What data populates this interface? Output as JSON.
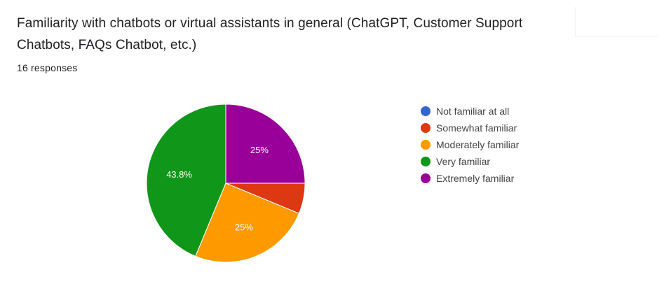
{
  "question": {
    "title": "Familiarity with chatbots or virtual assistants in general (ChatGPT, Customer Support Chatbots, FAQs Chatbot, etc.)",
    "responses_text": "16 responses"
  },
  "chart_data": {
    "type": "pie",
    "total_responses": 16,
    "categories": [
      "Not familiar at all",
      "Somewhat familiar",
      "Moderately familiar",
      "Very familiar",
      "Extremely familiar"
    ],
    "values": [
      0,
      1,
      4,
      7,
      4
    ],
    "percentages": [
      0,
      6.25,
      25,
      43.75,
      25
    ],
    "data_labels": [
      "",
      "",
      "25%",
      "43.8%",
      "25%"
    ],
    "colors": [
      "#3366cc",
      "#dc3912",
      "#ff9900",
      "#109618",
      "#990099"
    ],
    "legend_position": "right",
    "start_angle": "12 o'clock",
    "slice_order": [
      "Extremely familiar",
      "Somewhat familiar",
      "Moderately familiar",
      "Very familiar"
    ]
  }
}
